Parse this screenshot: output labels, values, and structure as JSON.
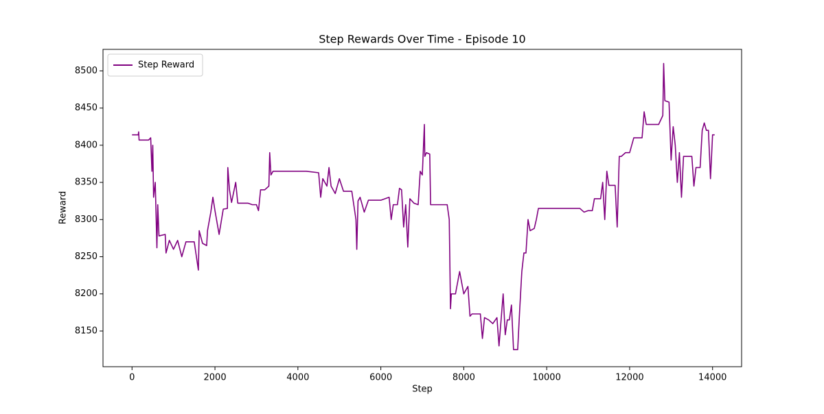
{
  "chart_data": {
    "type": "line",
    "title": "Step Rewards Over Time - Episode 10",
    "x_label": "Step",
    "y_label": "Reward",
    "x": [
      0,
      150,
      160,
      170,
      400,
      450,
      480,
      500,
      520,
      560,
      600,
      620,
      650,
      800,
      820,
      900,
      1000,
      1100,
      1200,
      1300,
      1500,
      1600,
      1620,
      1700,
      1800,
      1820,
      1900,
      1950,
      2000,
      2100,
      2200,
      2300,
      2310,
      2350,
      2400,
      2500,
      2550,
      2800,
      2900,
      3000,
      3050,
      3100,
      3200,
      3300,
      3320,
      3350,
      3400,
      3800,
      4200,
      4500,
      4550,
      4600,
      4700,
      4750,
      4800,
      4900,
      5000,
      5100,
      5300,
      5400,
      5420,
      5450,
      5500,
      5600,
      5700,
      6000,
      6200,
      6250,
      6300,
      6400,
      6450,
      6500,
      6550,
      6600,
      6650,
      6700,
      6800,
      6900,
      6950,
      7000,
      7050,
      7060,
      7100,
      7180,
      7200,
      7300,
      7600,
      7650,
      7680,
      7700,
      7800,
      7900,
      8000,
      8100,
      8150,
      8200,
      8400,
      8450,
      8500,
      8600,
      8700,
      8800,
      8850,
      8900,
      8950,
      9000,
      9050,
      9100,
      9150,
      9200,
      9300,
      9350,
      9400,
      9450,
      9500,
      9550,
      9600,
      9700,
      9750,
      9800,
      10000,
      10800,
      10900,
      11000,
      11100,
      11150,
      11300,
      11350,
      11400,
      11450,
      11500,
      11650,
      11700,
      11750,
      11800,
      11900,
      12000,
      12100,
      12300,
      12350,
      12400,
      12700,
      12800,
      12820,
      12850,
      12950,
      13000,
      13050,
      13100,
      13150,
      13200,
      13250,
      13300,
      13500,
      13550,
      13600,
      13700,
      13750,
      13800,
      13850,
      13900,
      13950,
      14000,
      14050
    ],
    "series": [
      {
        "name": "Step Reward",
        "color": "#800080",
        "values": [
          8414,
          8414,
          8418,
          8407,
          8407,
          8410,
          8365,
          8400,
          8330,
          8350,
          8262,
          8320,
          8278,
          8280,
          8255,
          8272,
          8260,
          8272,
          8250,
          8270,
          8270,
          8232,
          8285,
          8268,
          8265,
          8285,
          8310,
          8330,
          8312,
          8280,
          8314,
          8315,
          8370,
          8340,
          8323,
          8350,
          8322,
          8322,
          8320,
          8320,
          8312,
          8340,
          8340,
          8345,
          8390,
          8360,
          8365,
          8365,
          8365,
          8363,
          8330,
          8355,
          8345,
          8370,
          8345,
          8335,
          8355,
          8338,
          8338,
          8300,
          8260,
          8325,
          8330,
          8310,
          8326,
          8326,
          8330,
          8300,
          8320,
          8320,
          8342,
          8340,
          8290,
          8320,
          8263,
          8328,
          8322,
          8320,
          8365,
          8360,
          8428,
          8385,
          8390,
          8388,
          8320,
          8320,
          8320,
          8300,
          8180,
          8200,
          8200,
          8230,
          8200,
          8210,
          8170,
          8173,
          8173,
          8140,
          8168,
          8165,
          8160,
          8168,
          8130,
          8165,
          8200,
          8145,
          8165,
          8165,
          8185,
          8125,
          8125,
          8180,
          8230,
          8255,
          8255,
          8300,
          8285,
          8288,
          8300,
          8315,
          8315,
          8315,
          8310,
          8312,
          8312,
          8328,
          8328,
          8350,
          8300,
          8365,
          8346,
          8346,
          8290,
          8385,
          8385,
          8390,
          8390,
          8410,
          8410,
          8445,
          8428,
          8428,
          8440,
          8510,
          8460,
          8458,
          8380,
          8425,
          8400,
          8350,
          8390,
          8330,
          8385,
          8385,
          8345,
          8370,
          8370,
          8420,
          8430,
          8420,
          8420,
          8355,
          8414,
          8414
        ]
      }
    ],
    "xlim": [
      -700,
      14700
    ],
    "ylim": [
      8102,
      8529
    ],
    "xticks": [
      0,
      2000,
      4000,
      6000,
      8000,
      10000,
      12000,
      14000
    ],
    "yticks": [
      8150,
      8200,
      8250,
      8300,
      8350,
      8400,
      8450,
      8500
    ],
    "grid": false,
    "legend": "upper left"
  }
}
